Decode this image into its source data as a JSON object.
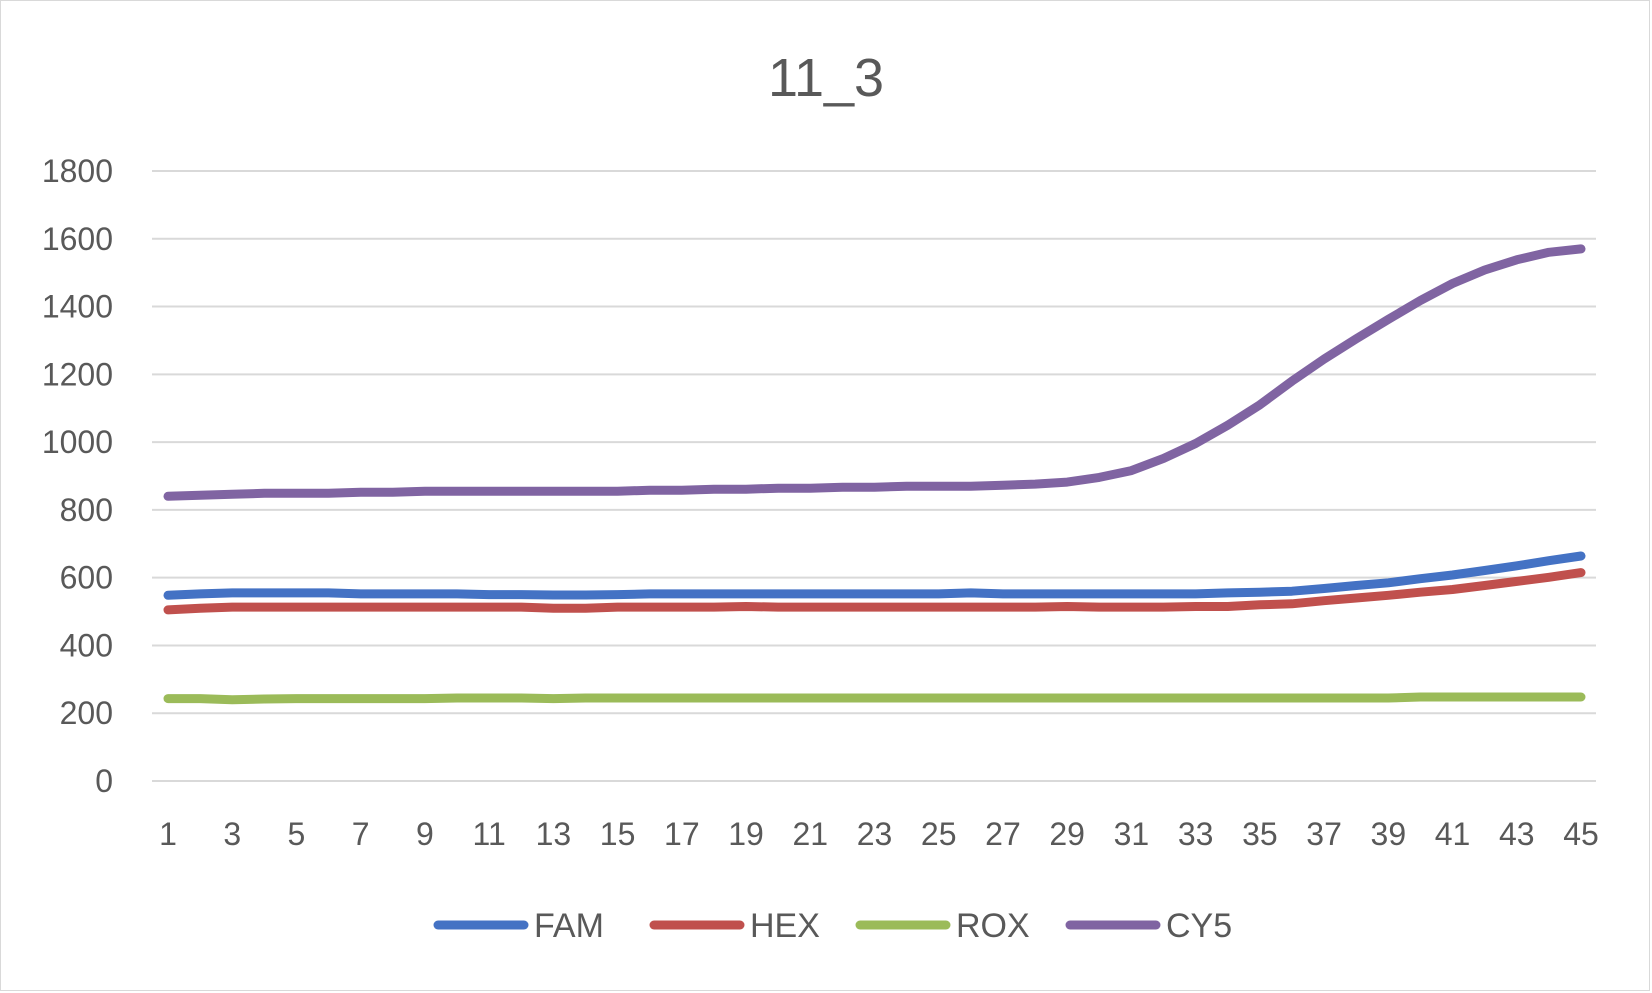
{
  "chart_data": {
    "type": "line",
    "title": "11_3",
    "xlabel": "",
    "ylabel": "",
    "ylim": [
      0,
      1800
    ],
    "yticks": [
      0,
      200,
      400,
      600,
      800,
      1000,
      1200,
      1400,
      1600,
      1800
    ],
    "x": [
      1,
      2,
      3,
      4,
      5,
      6,
      7,
      8,
      9,
      10,
      11,
      12,
      13,
      14,
      15,
      16,
      17,
      18,
      19,
      20,
      21,
      22,
      23,
      24,
      25,
      26,
      27,
      28,
      29,
      30,
      31,
      32,
      33,
      34,
      35,
      36,
      37,
      38,
      39,
      40,
      41,
      42,
      43,
      44,
      45
    ],
    "xtick_labels": [
      "1",
      "3",
      "5",
      "7",
      "9",
      "11",
      "13",
      "15",
      "17",
      "19",
      "21",
      "23",
      "25",
      "27",
      "29",
      "31",
      "33",
      "35",
      "37",
      "39",
      "41",
      "43",
      "45"
    ],
    "grid": "horizontal",
    "legend_position": "bottom",
    "series": [
      {
        "name": "FAM",
        "color": "#4472c4",
        "values": [
          548,
          552,
          555,
          555,
          555,
          555,
          552,
          552,
          552,
          552,
          550,
          550,
          549,
          549,
          550,
          552,
          552,
          552,
          552,
          552,
          552,
          552,
          552,
          552,
          552,
          555,
          552,
          552,
          552,
          552,
          552,
          552,
          552,
          555,
          557,
          560,
          568,
          577,
          585,
          597,
          608,
          621,
          635,
          650,
          664
        ]
      },
      {
        "name": "HEX",
        "color": "#c0504d",
        "values": [
          505,
          510,
          513,
          513,
          513,
          513,
          513,
          513,
          513,
          513,
          513,
          513,
          510,
          510,
          513,
          513,
          513,
          513,
          515,
          513,
          513,
          513,
          513,
          513,
          513,
          513,
          513,
          513,
          515,
          513,
          513,
          513,
          515,
          515,
          520,
          523,
          532,
          540,
          548,
          557,
          565,
          577,
          589,
          601,
          615
        ]
      },
      {
        "name": "ROX",
        "color": "#9bbb59",
        "values": [
          243,
          243,
          240,
          242,
          243,
          243,
          243,
          243,
          243,
          245,
          245,
          245,
          243,
          245,
          245,
          245,
          245,
          245,
          245,
          245,
          245,
          245,
          245,
          245,
          245,
          245,
          245,
          245,
          245,
          245,
          245,
          245,
          245,
          245,
          245,
          245,
          245,
          245,
          245,
          248,
          248,
          248,
          248,
          248,
          248
        ]
      },
      {
        "name": "CY5",
        "color": "#8064a2",
        "values": [
          840,
          843,
          846,
          849,
          849,
          849,
          852,
          852,
          855,
          855,
          855,
          855,
          855,
          855,
          855,
          858,
          858,
          861,
          861,
          864,
          864,
          867,
          867,
          870,
          870,
          870,
          873,
          876,
          882,
          896,
          916,
          952,
          996,
          1050,
          1110,
          1180,
          1245,
          1305,
          1362,
          1418,
          1468,
          1508,
          1538,
          1560,
          1570
        ]
      }
    ]
  }
}
